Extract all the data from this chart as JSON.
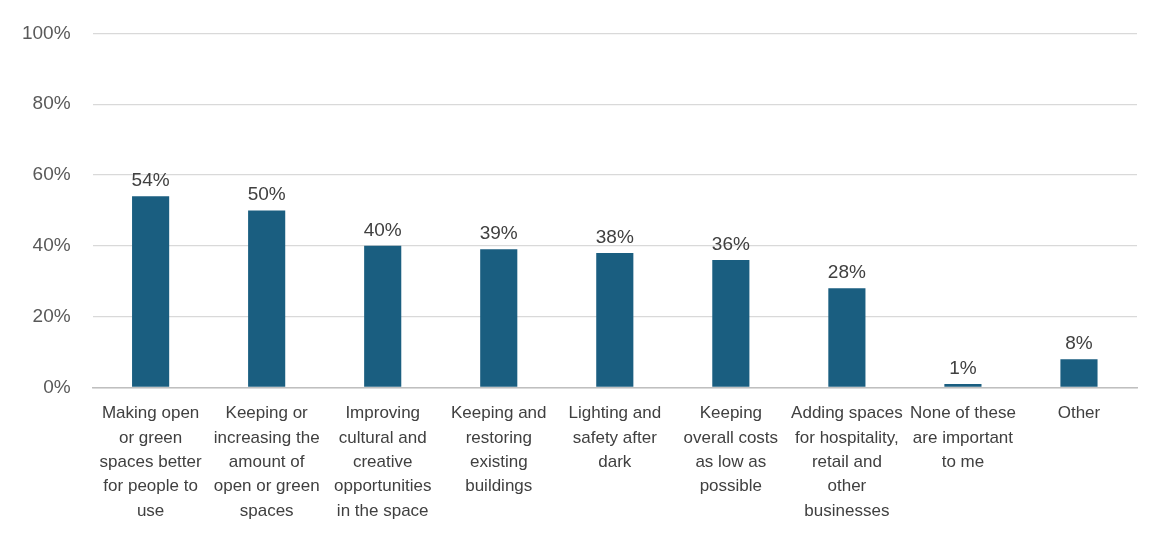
{
  "chart_data": {
    "type": "bar",
    "categories": [
      "Making open or green spaces better for people to use",
      "Keeping or increasing the amount of open or green spaces",
      "Improving cultural and creative opportunities in the space",
      "Keeping and restoring existing buildings",
      "Lighting and safety after dark",
      "Keeping overall costs as low as possible",
      "Adding spaces for hospitality, retail and other businesses",
      "None of these are important to me",
      "Other"
    ],
    "values": [
      54,
      50,
      40,
      39,
      38,
      36,
      28,
      1,
      8
    ],
    "value_labels": [
      "54%",
      "50%",
      "40%",
      "39%",
      "38%",
      "36%",
      "28%",
      "1%",
      "8%"
    ],
    "color": "#1a5e80",
    "ylim": [
      0,
      100
    ],
    "yticks": [
      {
        "value": 0,
        "label": "0%"
      },
      {
        "value": 20,
        "label": "20%"
      },
      {
        "value": 40,
        "label": "40%"
      },
      {
        "value": 60,
        "label": "60%"
      },
      {
        "value": 80,
        "label": "80%"
      },
      {
        "value": 100,
        "label": "100%"
      }
    ],
    "grid": "y",
    "legend": false
  }
}
